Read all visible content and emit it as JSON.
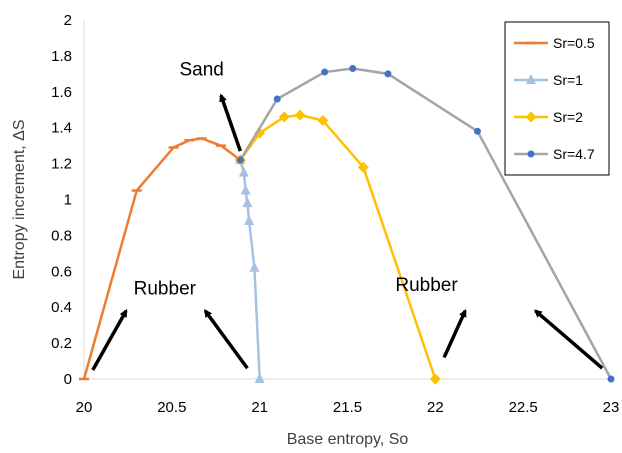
{
  "chart_data": {
    "type": "line",
    "title": "",
    "xlabel": "Base entropy, So",
    "ylabel": "Entropy increment, ΔS",
    "xlim": [
      20,
      23
    ],
    "ylim": [
      0,
      2
    ],
    "x_ticks": [
      "20",
      "20.5",
      "21",
      "21.5",
      "22",
      "22.5",
      "23"
    ],
    "y_ticks": [
      "0",
      "0.2",
      "0.4",
      "0.6",
      "0.8",
      "1",
      "1.2",
      "1.4",
      "1.6",
      "1.8",
      "2"
    ],
    "grid": false,
    "legend_position": "top-right",
    "series": [
      {
        "name": "Sr=0.5",
        "color": "#ED7D31",
        "marker": "dash",
        "x": [
          20.0,
          20.3,
          20.51,
          20.6,
          20.67,
          20.78,
          20.89
        ],
        "y": [
          0.0,
          1.05,
          1.29,
          1.33,
          1.34,
          1.3,
          1.22
        ]
      },
      {
        "name": "Sr=1",
        "color": "#A5C2E2",
        "marker": "triangle",
        "x": [
          20.89,
          20.91,
          20.92,
          20.93,
          20.94,
          20.97,
          21.0
        ],
        "y": [
          1.22,
          1.15,
          1.05,
          0.98,
          0.88,
          0.62,
          0.0
        ]
      },
      {
        "name": "Sr=2",
        "color": "#FFC000",
        "marker": "diamond",
        "x": [
          20.89,
          21.0,
          21.14,
          21.23,
          21.36,
          21.59,
          22.0
        ],
        "y": [
          1.22,
          1.37,
          1.46,
          1.47,
          1.44,
          1.18,
          0.0
        ]
      },
      {
        "name": "Sr=4.7",
        "color": "#A5A5A5",
        "marker_color": "#4472C4",
        "marker": "circle",
        "x": [
          20.89,
          21.1,
          21.37,
          21.53,
          21.73,
          22.24,
          23.0
        ],
        "y": [
          1.22,
          1.56,
          1.71,
          1.73,
          1.7,
          1.38,
          0.0
        ]
      }
    ],
    "annotations": [
      {
        "text": "Sand",
        "x": 20.67,
        "y": 1.69,
        "arrow_from": [
          20.89,
          1.27
        ],
        "arrow_to": [
          20.78,
          1.58
        ]
      },
      {
        "text": "Rubber",
        "x": 20.46,
        "y": 0.47,
        "arrow_from": [
          20.05,
          0.05
        ],
        "arrow_to": [
          20.24,
          0.38
        ]
      },
      {
        "text": "Rubber",
        "x": 21.95,
        "y": 0.49,
        "arrow_from": [
          20.93,
          0.06
        ],
        "arrow_to": [
          20.69,
          0.38
        ]
      },
      {
        "text": "Rubber",
        "x": 21.95,
        "y": 0.49,
        "arrow_from": [
          22.05,
          0.12
        ],
        "arrow_to": [
          22.17,
          0.38
        ]
      },
      {
        "text": "Rubber",
        "x": 21.95,
        "y": 0.49,
        "arrow_from": [
          22.95,
          0.06
        ],
        "arrow_to": [
          22.57,
          0.38
        ]
      }
    ]
  }
}
